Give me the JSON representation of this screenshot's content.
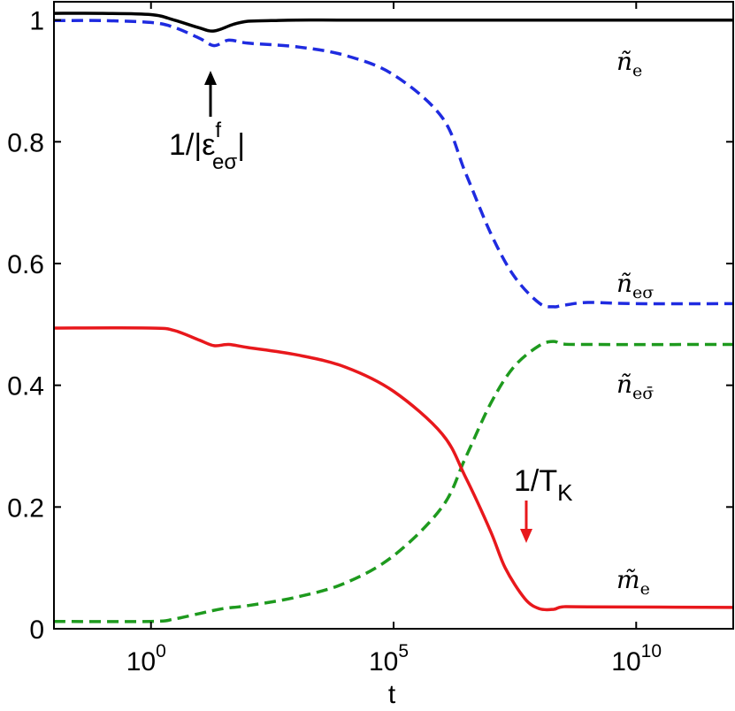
{
  "chart_data": {
    "type": "line",
    "xlabel": "t",
    "ylabel": "",
    "x_scale": "log",
    "xlim": [
      0.01,
      1000000000000.0
    ],
    "ylim": [
      0,
      1.03
    ],
    "grid": false,
    "x_ticks": [
      {
        "base": "10",
        "exp": "0",
        "value": 1
      },
      {
        "base": "10",
        "exp": "5",
        "value": 100000
      },
      {
        "base": "10",
        "exp": "10",
        "value": 10000000000
      }
    ],
    "y_ticks": [
      {
        "label": "0",
        "value": 0
      },
      {
        "label": "0.2",
        "value": 0.2
      },
      {
        "label": "0.4",
        "value": 0.4
      },
      {
        "label": "0.6",
        "value": 0.6
      },
      {
        "label": "0.8",
        "value": 0.8
      },
      {
        "label": "1",
        "value": 1
      }
    ],
    "series": [
      {
        "key": "n_e",
        "color": "#000000",
        "style": "solid",
        "label_main": "ñ",
        "label_sub": "e",
        "x": [
          0.01,
          0.1,
          1,
          3,
          10,
          20,
          50,
          100,
          300,
          1000,
          10000.0,
          1000000.0,
          100000000.0,
          10000000000.0,
          1000000000000.0
        ],
        "y": [
          1.011,
          1.011,
          1.009,
          1.0,
          0.987,
          0.982,
          0.993,
          0.998,
          0.999,
          1.0,
          1.0,
          1.0,
          1.0,
          1.0,
          1.0
        ]
      },
      {
        "key": "n_esigma",
        "color": "#1f2be0",
        "style": "dashed",
        "label_main": "ñ",
        "label_sub": "eσ",
        "x": [
          0.01,
          0.1,
          1,
          3,
          10,
          20,
          40,
          100,
          1000,
          10000.0,
          100000.0,
          1000000.0,
          3000000.0,
          10000000.0,
          30000000.0,
          100000000.0,
          200000000.0,
          300000000.0,
          1000000000.0,
          10000000000.0,
          1000000000000.0
        ],
        "y": [
          0.999,
          0.999,
          0.996,
          0.988,
          0.97,
          0.958,
          0.967,
          0.962,
          0.956,
          0.942,
          0.91,
          0.84,
          0.75,
          0.65,
          0.58,
          0.535,
          0.529,
          0.531,
          0.536,
          0.534,
          0.534
        ]
      },
      {
        "key": "n_esigmabar",
        "color": "#1e9a1e",
        "style": "dashed",
        "label_main": "ñ",
        "label_sub": "eσ̄",
        "x": [
          0.01,
          1,
          3,
          10,
          30,
          100,
          1000,
          10000.0,
          100000.0,
          1000000.0,
          3000000.0,
          10000000.0,
          30000000.0,
          100000000.0,
          200000000.0,
          300000000.0,
          1000000000.0,
          1000000000000.0
        ],
        "y": [
          0.012,
          0.012,
          0.016,
          0.025,
          0.033,
          0.038,
          0.052,
          0.075,
          0.12,
          0.2,
          0.28,
          0.37,
          0.43,
          0.465,
          0.472,
          0.468,
          0.467,
          0.467
        ]
      },
      {
        "key": "m_e",
        "color": "#e8181c",
        "style": "solid",
        "label_main": "m̃",
        "label_sub": "e",
        "x": [
          0.01,
          1,
          3,
          10,
          20,
          40,
          100,
          1000,
          10000.0,
          100000.0,
          1000000.0,
          3000000.0,
          10000000.0,
          20000000.0,
          50000000.0,
          100000000.0,
          200000000.0,
          300000000.0,
          1000000000.0,
          1000000000000.0
        ],
        "y": [
          0.494,
          0.494,
          0.49,
          0.474,
          0.465,
          0.467,
          0.462,
          0.45,
          0.43,
          0.39,
          0.32,
          0.25,
          0.16,
          0.1,
          0.05,
          0.033,
          0.032,
          0.036,
          0.036,
          0.035
        ]
      }
    ],
    "annotations": [
      {
        "key": "eps",
        "text_main": "1/|ε",
        "sup": "f",
        "sub": "eσ",
        "text_end": "|",
        "color": "#000000",
        "x": 12,
        "y": 0.957
      },
      {
        "key": "tk",
        "text_main": "1/T",
        "sub": "K",
        "color": "#e8181c",
        "x": 50000000.0,
        "y": 0.1
      }
    ]
  }
}
